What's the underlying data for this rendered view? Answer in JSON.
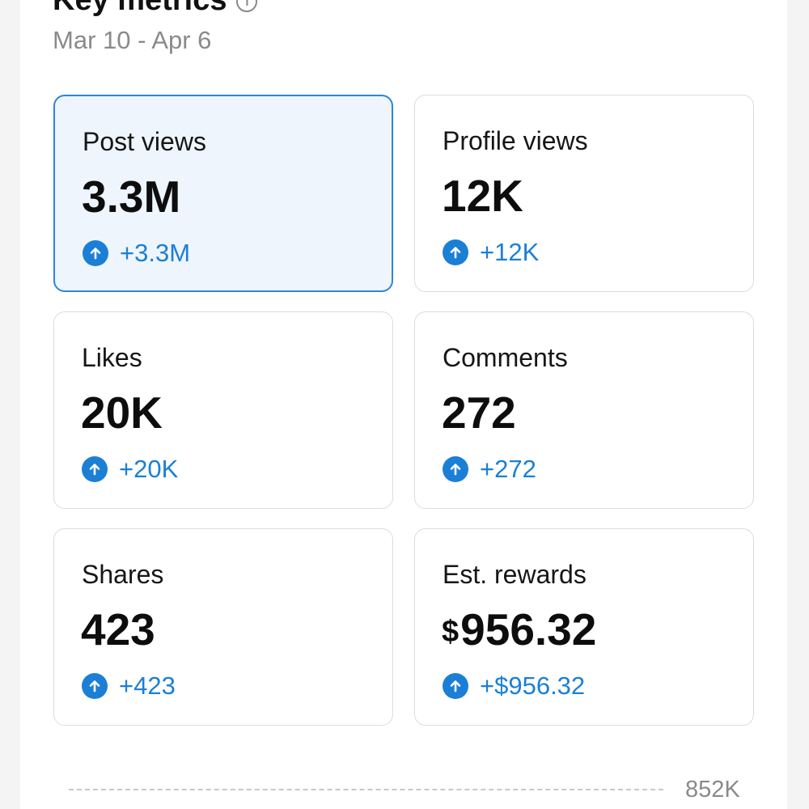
{
  "header": {
    "title": "Key metrics",
    "info_icon": "info-icon",
    "date_range": "Mar 10 - Apr 6"
  },
  "colors": {
    "accent": "#1b7fd6",
    "selected_background": "#eef5fc",
    "selected_border": "#2f86d8",
    "card_border": "#dcdcdc",
    "muted_text": "#8a8a8a"
  },
  "metrics": [
    {
      "label": "Post views",
      "value": "3.3M",
      "delta": "+3.3M",
      "selected": true,
      "trend_icon": "arrow-up-circle-icon"
    },
    {
      "label": "Profile views",
      "value": "12K",
      "delta": "+12K",
      "selected": false,
      "trend_icon": "arrow-up-circle-icon"
    },
    {
      "label": "Likes",
      "value": "20K",
      "delta": "+20K",
      "selected": false,
      "trend_icon": "arrow-up-circle-icon"
    },
    {
      "label": "Comments",
      "value": "272",
      "delta": "+272",
      "selected": false,
      "trend_icon": "arrow-up-circle-icon"
    },
    {
      "label": "Shares",
      "value": "423",
      "delta": "+423",
      "selected": false,
      "trend_icon": "arrow-up-circle-icon"
    },
    {
      "label": "Est. rewards",
      "currency": "$",
      "value": "956.32",
      "delta": "+$956.32",
      "selected": false,
      "trend_icon": "arrow-up-circle-icon"
    }
  ],
  "chart": {
    "top_tick_label": "852K"
  }
}
